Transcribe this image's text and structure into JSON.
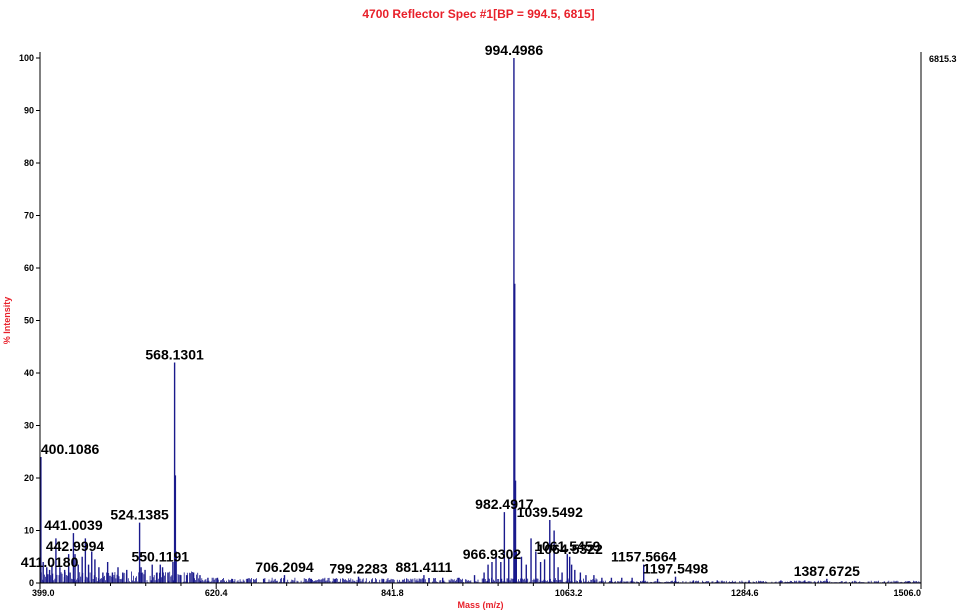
{
  "chart_data": {
    "type": "line",
    "title": "4700 Reflector Spec #1[BP = 994.5, 6815]",
    "xlabel": "Mass (m/z)",
    "ylabel": "% Intensity",
    "xlim": [
      399.0,
      1506.0
    ],
    "ylim": [
      0,
      100
    ],
    "x_ticks": [
      399.0,
      620.4,
      841.8,
      1063.2,
      1284.6,
      1506.0
    ],
    "x_tick_labels": [
      "399.0",
      "620.4",
      "841.8",
      "1063.2",
      "1284.6",
      "1506.0"
    ],
    "y_ticks": [
      0,
      10,
      20,
      30,
      40,
      50,
      60,
      70,
      80,
      90,
      100
    ],
    "y_tick_labels": [
      "0",
      "10",
      "20",
      "30",
      "40",
      "50",
      "60",
      "70",
      "80",
      "90",
      "100"
    ],
    "max_intensity_label": "6815.3",
    "grid": false,
    "line_color": "#1a1a8c",
    "peaks": [
      {
        "mz": 399.6,
        "intensity": 11.0
      },
      {
        "mz": 400.1086,
        "intensity": 24.0,
        "label": "400.1086"
      },
      {
        "mz": 403.0,
        "intensity": 4.0
      },
      {
        "mz": 407.5,
        "intensity": 3.0
      },
      {
        "mz": 411.018,
        "intensity": 2.5,
        "label": "411.0180"
      },
      {
        "mz": 414.0,
        "intensity": 3.5
      },
      {
        "mz": 419.0,
        "intensity": 8.5
      },
      {
        "mz": 424.0,
        "intensity": 3.0
      },
      {
        "mz": 430.0,
        "intensity": 2.5
      },
      {
        "mz": 435.0,
        "intensity": 5.5
      },
      {
        "mz": 441.0039,
        "intensity": 9.5,
        "label": "441.0039"
      },
      {
        "mz": 442.9994,
        "intensity": 5.5,
        "label": "442.9994"
      },
      {
        "mz": 447.0,
        "intensity": 3.5
      },
      {
        "mz": 452.0,
        "intensity": 5.0
      },
      {
        "mz": 456.0,
        "intensity": 8.5
      },
      {
        "mz": 460.0,
        "intensity": 3.5
      },
      {
        "mz": 464.0,
        "intensity": 6.0
      },
      {
        "mz": 468.0,
        "intensity": 4.5
      },
      {
        "mz": 473.0,
        "intensity": 3.0
      },
      {
        "mz": 478.0,
        "intensity": 2.0
      },
      {
        "mz": 484.0,
        "intensity": 4.0
      },
      {
        "mz": 490.0,
        "intensity": 2.0
      },
      {
        "mz": 497.0,
        "intensity": 3.0
      },
      {
        "mz": 503.0,
        "intensity": 2.0
      },
      {
        "mz": 508.0,
        "intensity": 2.5
      },
      {
        "mz": 524.1385,
        "intensity": 11.5,
        "label": "524.1385"
      },
      {
        "mz": 526.0,
        "intensity": 3.0
      },
      {
        "mz": 531.0,
        "intensity": 2.5
      },
      {
        "mz": 540.0,
        "intensity": 3.5
      },
      {
        "mz": 546.0,
        "intensity": 2.0
      },
      {
        "mz": 550.1191,
        "intensity": 3.5,
        "label": "550.1191"
      },
      {
        "mz": 553.0,
        "intensity": 3.0
      },
      {
        "mz": 560.0,
        "intensity": 2.0
      },
      {
        "mz": 566.0,
        "intensity": 4.0
      },
      {
        "mz": 568.1301,
        "intensity": 42.0,
        "label": "568.1301"
      },
      {
        "mz": 569.1,
        "intensity": 20.5
      },
      {
        "mz": 570.1,
        "intensity": 6.0
      },
      {
        "mz": 576.0,
        "intensity": 1.5
      },
      {
        "mz": 584.0,
        "intensity": 1.5
      },
      {
        "mz": 592.0,
        "intensity": 2.0
      },
      {
        "mz": 600.0,
        "intensity": 1.5
      },
      {
        "mz": 610.0,
        "intensity": 1.0
      },
      {
        "mz": 622.0,
        "intensity": 1.0
      },
      {
        "mz": 640.0,
        "intensity": 0.8
      },
      {
        "mz": 660.0,
        "intensity": 0.8
      },
      {
        "mz": 680.0,
        "intensity": 0.8
      },
      {
        "mz": 706.2094,
        "intensity": 1.5,
        "label": "706.2094"
      },
      {
        "mz": 740.0,
        "intensity": 0.8
      },
      {
        "mz": 770.0,
        "intensity": 0.8
      },
      {
        "mz": 799.2283,
        "intensity": 1.2,
        "label": "799.2283"
      },
      {
        "mz": 830.0,
        "intensity": 0.8
      },
      {
        "mz": 860.0,
        "intensity": 0.8
      },
      {
        "mz": 881.4111,
        "intensity": 1.5,
        "label": "881.4111"
      },
      {
        "mz": 905.0,
        "intensity": 1.0
      },
      {
        "mz": 925.0,
        "intensity": 1.0
      },
      {
        "mz": 945.0,
        "intensity": 1.5
      },
      {
        "mz": 957.0,
        "intensity": 2.0
      },
      {
        "mz": 962.0,
        "intensity": 3.5
      },
      {
        "mz": 966.9302,
        "intensity": 4.0,
        "label": "966.9302"
      },
      {
        "mz": 972.0,
        "intensity": 6.0
      },
      {
        "mz": 978.0,
        "intensity": 4.0
      },
      {
        "mz": 982.4917,
        "intensity": 13.5,
        "label": "982.4917"
      },
      {
        "mz": 988.0,
        "intensity": 5.0
      },
      {
        "mz": 994.4986,
        "intensity": 100.0,
        "label": "994.4986"
      },
      {
        "mz": 995.5,
        "intensity": 57.0
      },
      {
        "mz": 996.5,
        "intensity": 19.5
      },
      {
        "mz": 997.5,
        "intensity": 6.0
      },
      {
        "mz": 1004.0,
        "intensity": 5.0
      },
      {
        "mz": 1010.0,
        "intensity": 3.5
      },
      {
        "mz": 1016.0,
        "intensity": 8.5
      },
      {
        "mz": 1022.0,
        "intensity": 6.0
      },
      {
        "mz": 1028.0,
        "intensity": 4.0
      },
      {
        "mz": 1033.0,
        "intensity": 4.5
      },
      {
        "mz": 1039.5492,
        "intensity": 12.0,
        "label": "1039.5492"
      },
      {
        "mz": 1045.0,
        "intensity": 10.0
      },
      {
        "mz": 1050.0,
        "intensity": 3.0
      },
      {
        "mz": 1055.0,
        "intensity": 2.0
      },
      {
        "mz": 1061.5459,
        "intensity": 5.5,
        "label": "1061.5459"
      },
      {
        "mz": 1064.5322,
        "intensity": 5.0,
        "label": "1064.5322"
      },
      {
        "mz": 1067.0,
        "intensity": 3.5
      },
      {
        "mz": 1071.0,
        "intensity": 2.5
      },
      {
        "mz": 1078.0,
        "intensity": 2.0
      },
      {
        "mz": 1085.0,
        "intensity": 1.5
      },
      {
        "mz": 1095.0,
        "intensity": 1.5
      },
      {
        "mz": 1105.0,
        "intensity": 1.0
      },
      {
        "mz": 1117.0,
        "intensity": 1.0
      },
      {
        "mz": 1130.0,
        "intensity": 1.0
      },
      {
        "mz": 1143.0,
        "intensity": 1.0
      },
      {
        "mz": 1157.5664,
        "intensity": 3.5,
        "label": "1157.5664"
      },
      {
        "mz": 1175.0,
        "intensity": 0.8
      },
      {
        "mz": 1197.5498,
        "intensity": 1.2,
        "label": "1197.5498"
      },
      {
        "mz": 1220.0,
        "intensity": 0.5
      },
      {
        "mz": 1250.0,
        "intensity": 0.5
      },
      {
        "mz": 1290.0,
        "intensity": 0.5
      },
      {
        "mz": 1330.0,
        "intensity": 0.5
      },
      {
        "mz": 1360.0,
        "intensity": 0.5
      },
      {
        "mz": 1387.6725,
        "intensity": 0.8,
        "label": "1387.6725"
      },
      {
        "mz": 1420.0,
        "intensity": 0.3
      },
      {
        "mz": 1460.0,
        "intensity": 0.3
      },
      {
        "mz": 1490.0,
        "intensity": 0.3
      }
    ]
  }
}
